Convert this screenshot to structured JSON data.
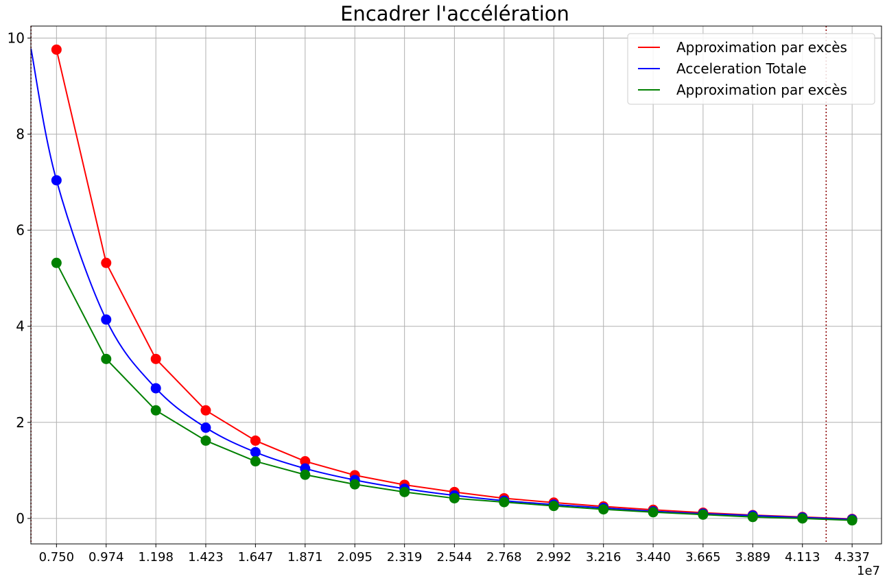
{
  "chart_data": {
    "type": "line",
    "title": "Encadrer l'accélération",
    "xlabel": "",
    "ylabel": "",
    "x_offset_label": "1e7",
    "x_tick_labels": [
      "0.750",
      "0.974",
      "1.198",
      "1.423",
      "1.647",
      "1.871",
      "2.095",
      "2.319",
      "2.544",
      "2.768",
      "2.992",
      "3.216",
      "3.440",
      "3.665",
      "3.889",
      "4.113",
      "4.337"
    ],
    "x": [
      0.75,
      0.974,
      1.198,
      1.423,
      1.647,
      1.871,
      2.095,
      2.319,
      2.544,
      2.768,
      2.992,
      3.216,
      3.44,
      3.665,
      3.889,
      4.113,
      4.337
    ],
    "xlim": [
      0.6345,
      4.4695
    ],
    "ylim": [
      -0.53,
      10.25
    ],
    "y_ticks": [
      0,
      2,
      4,
      6,
      8,
      10
    ],
    "grid": true,
    "legend_position": "top-right",
    "vlines": {
      "x": [
        0.635,
        4.22
      ],
      "color": "#8b0000",
      "style": "dotted"
    },
    "series": [
      {
        "name": "Approximation par excès",
        "color": "#ff0000",
        "values": [
          9.76,
          5.32,
          3.32,
          2.25,
          1.62,
          1.19,
          0.9,
          0.7,
          0.55,
          0.42,
          0.33,
          0.25,
          0.18,
          0.12,
          0.07,
          0.03,
          -0.01
        ]
      },
      {
        "name": "Acceleration Totale",
        "color": "#0000ff",
        "curve_start": [
          0.635,
          9.78
        ],
        "values": [
          7.04,
          4.14,
          2.71,
          1.89,
          1.38,
          1.04,
          0.8,
          0.62,
          0.48,
          0.37,
          0.29,
          0.22,
          0.15,
          0.1,
          0.06,
          0.02,
          -0.02
        ]
      },
      {
        "name": "Approximation par excès",
        "color": "#008000",
        "values": [
          5.32,
          3.32,
          2.25,
          1.62,
          1.19,
          0.91,
          0.71,
          0.55,
          0.42,
          0.34,
          0.26,
          0.19,
          0.13,
          0.08,
          0.03,
          0.0,
          -0.04
        ]
      }
    ]
  }
}
